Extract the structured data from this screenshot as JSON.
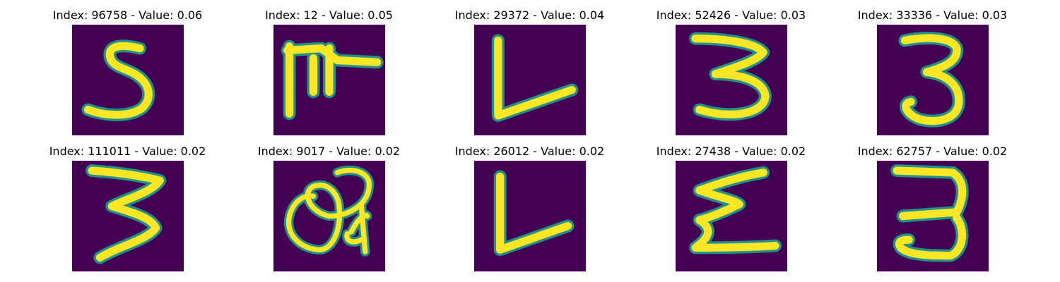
{
  "chart_data": {
    "type": "image-grid",
    "colormap": "viridis",
    "background_color": "#440154",
    "stroke_color": "#fde725",
    "edge_color": "#21918c",
    "panels": [
      {
        "title": "Index: 96758 - Value: 0.06",
        "index": 96758,
        "value": 0.06,
        "glyph": "5"
      },
      {
        "title": "Index: 12 - Value: 0.05",
        "index": 12,
        "value": 0.05,
        "glyph": "F-like symbol"
      },
      {
        "title": "Index: 29372 - Value: 0.04",
        "index": 29372,
        "value": 0.04,
        "glyph": "L"
      },
      {
        "title": "Index: 52426 - Value: 0.03",
        "index": 52426,
        "value": 0.03,
        "glyph": "3"
      },
      {
        "title": "Index: 33336 - Value: 0.03",
        "index": 33336,
        "value": 0.03,
        "glyph": "3"
      },
      {
        "title": "Index: 111011 - Value: 0.02",
        "index": 111011,
        "value": 0.02,
        "glyph": "3"
      },
      {
        "title": "Index: 9017 - Value: 0.02",
        "index": 9017,
        "value": 0.02,
        "glyph": "loop scribble"
      },
      {
        "title": "Index: 26012 - Value: 0.02",
        "index": 26012,
        "value": 0.02,
        "glyph": "L"
      },
      {
        "title": "Index: 27438 - Value: 0.02",
        "index": 27438,
        "value": 0.02,
        "glyph": "sigma-like"
      },
      {
        "title": "Index: 62757 - Value: 0.02",
        "index": 62757,
        "value": 0.02,
        "glyph": "3"
      }
    ]
  }
}
